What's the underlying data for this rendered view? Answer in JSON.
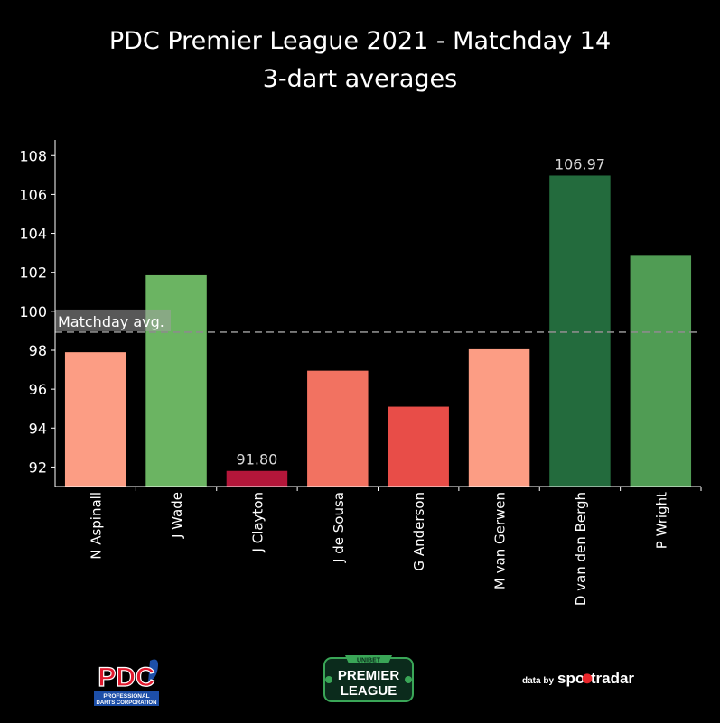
{
  "title_line1": "PDC Premier League 2021 - Matchday 14",
  "title_line2": "3-dart averages",
  "chart_data": {
    "type": "bar",
    "categories": [
      "N Aspinall",
      "J Wade",
      "J Clayton",
      "J de Sousa",
      "G Anderson",
      "M van Gerwen",
      "D van den Bergh",
      "P Wright"
    ],
    "values": [
      97.9,
      101.85,
      91.8,
      96.95,
      95.1,
      98.05,
      106.97,
      102.85
    ],
    "colors": [
      "#fc9d84",
      "#6bb462",
      "#b4163a",
      "#f27261",
      "#e84d48",
      "#fc9d84",
      "#236b3d",
      "#509c54"
    ],
    "value_labels": [
      {
        "index": 2,
        "text": "91.80"
      },
      {
        "index": 6,
        "text": "106.97"
      }
    ],
    "ylim": [
      91,
      108.8
    ],
    "yticks": [
      92,
      94,
      96,
      98,
      100,
      102,
      104,
      106,
      108
    ],
    "reference_line": {
      "value": 98.93,
      "label": "Matchday avg."
    },
    "grid": false,
    "xlabel": "",
    "ylabel": ""
  },
  "logos": {
    "pdc": {
      "main": "PDC",
      "sub1": "PROFESSIONAL",
      "sub2": "DARTS CORPORATION"
    },
    "premier_league": {
      "top": "UNIBET",
      "line1": "PREMIER",
      "line2": "LEAGUE"
    },
    "sportradar": {
      "prefix": "data by",
      "name": "sportradar"
    }
  }
}
